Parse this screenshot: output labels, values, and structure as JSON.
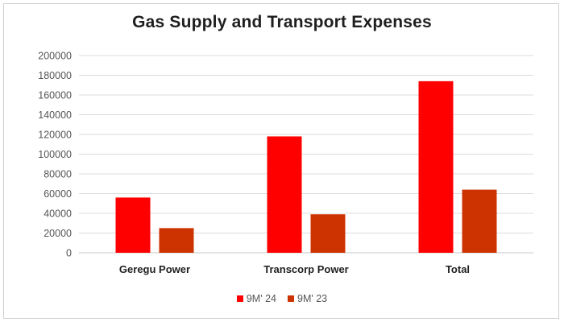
{
  "chart_data": {
    "type": "bar",
    "title": "Gas Supply and Transport Expenses",
    "categories": [
      "Geregu Power",
      "Transcorp Power",
      "Total"
    ],
    "series": [
      {
        "name": "9M' 24",
        "values": [
          56000,
          118000,
          174000
        ],
        "color": "#ff0000"
      },
      {
        "name": "9M' 23",
        "values": [
          25000,
          39000,
          64000
        ],
        "color": "#cc3300"
      }
    ],
    "ylim": [
      0,
      200000
    ],
    "yticks": [
      0,
      20000,
      40000,
      60000,
      80000,
      100000,
      120000,
      140000,
      160000,
      180000,
      200000
    ],
    "grid": true,
    "legend": "bottom",
    "xlabel": "",
    "ylabel": ""
  }
}
